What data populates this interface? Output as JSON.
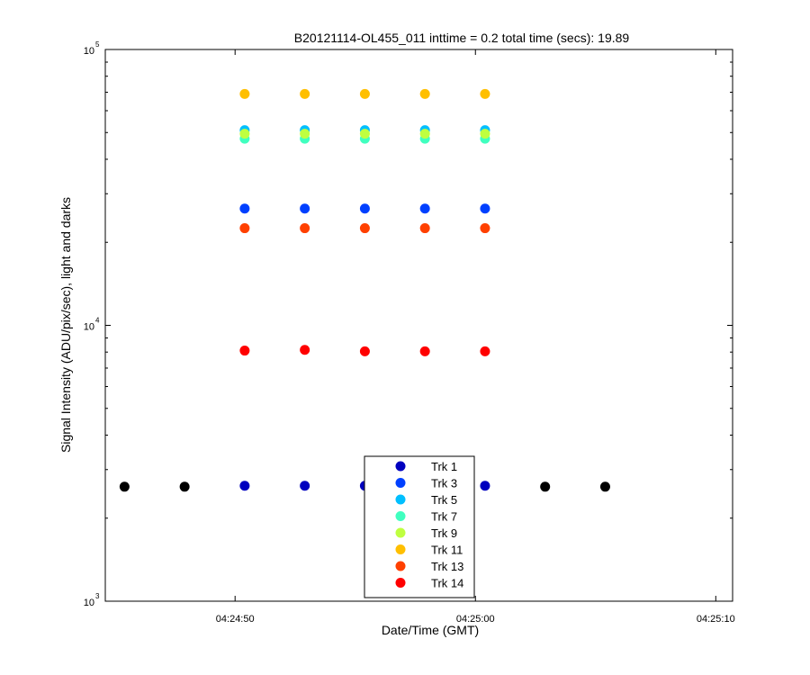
{
  "chart_data": {
    "type": "scatter",
    "title": "B20121114-OL455_011 inttime = 0.2 total time (secs): 19.89",
    "xlabel": "Date/Time (GMT)",
    "ylabel": "Signal Intensity (ADU/pix/sec), light and darks",
    "xscale": "time",
    "yscale": "log",
    "xlim": [
      "04:24:44.6",
      "04:25:10.7"
    ],
    "ylim": [
      1000,
      100000
    ],
    "x_ticks": [
      "04:24:50",
      "04:25:00",
      "04:25:10"
    ],
    "y_ticks": [
      {
        "base": "10",
        "exp": "3",
        "value": 1000
      },
      {
        "base": "10",
        "exp": "4",
        "value": 10000
      },
      {
        "base": "10",
        "exp": "5",
        "value": 100000
      }
    ],
    "grid": false,
    "legend_position": "bottom-center",
    "series": [
      {
        "name": "Trk 1",
        "color": "#0000bf",
        "x": [
          "04:24:50.4",
          "04:24:52.9",
          "04:24:55.4",
          "04:24:57.9",
          "04:25:00.4"
        ],
        "y": [
          2620,
          2620,
          2620,
          2620,
          2620
        ]
      },
      {
        "name": "Trk 3",
        "color": "#0040ff",
        "x": [
          "04:24:50.4",
          "04:24:52.9",
          "04:24:55.4",
          "04:24:57.9",
          "04:25:00.4"
        ],
        "y": [
          26500,
          26500,
          26500,
          26500,
          26500
        ]
      },
      {
        "name": "Trk 5",
        "color": "#00bfff",
        "x": [
          "04:24:50.4",
          "04:24:52.9",
          "04:24:55.4",
          "04:24:57.9",
          "04:25:00.4"
        ],
        "y": [
          51000,
          51000,
          51000,
          51000,
          51000
        ]
      },
      {
        "name": "Trk 7",
        "color": "#40ffbf",
        "x": [
          "04:24:50.4",
          "04:24:52.9",
          "04:24:55.4",
          "04:24:57.9",
          "04:25:00.4"
        ],
        "y": [
          47500,
          47500,
          47500,
          47500,
          47500
        ]
      },
      {
        "name": "Trk 9",
        "color": "#bfff40",
        "x": [
          "04:24:50.4",
          "04:24:52.9",
          "04:24:55.4",
          "04:24:57.9",
          "04:25:00.4"
        ],
        "y": [
          49500,
          49500,
          49500,
          49500,
          49500
        ]
      },
      {
        "name": "Trk 11",
        "color": "#ffbf00",
        "x": [
          "04:24:50.4",
          "04:24:52.9",
          "04:24:55.4",
          "04:24:57.9",
          "04:25:00.4"
        ],
        "y": [
          69000,
          69000,
          69000,
          69000,
          69000
        ]
      },
      {
        "name": "Trk 13",
        "color": "#ff4000",
        "x": [
          "04:24:50.4",
          "04:24:52.9",
          "04:24:55.4",
          "04:24:57.9",
          "04:25:00.4"
        ],
        "y": [
          22500,
          22500,
          22500,
          22500,
          22500
        ]
      },
      {
        "name": "Trk 14",
        "color": "#ff0000",
        "x": [
          "04:24:50.4",
          "04:24:52.9",
          "04:24:55.4",
          "04:24:57.9",
          "04:25:00.4"
        ],
        "y": [
          8100,
          8150,
          8050,
          8050,
          8050
        ]
      },
      {
        "color": "#000000",
        "x": [
          "04:24:45.4",
          "04:24:47.9",
          "04:25:02.9",
          "04:25:05.4"
        ],
        "y": [
          2600,
          2600,
          2600,
          2600
        ]
      }
    ]
  }
}
